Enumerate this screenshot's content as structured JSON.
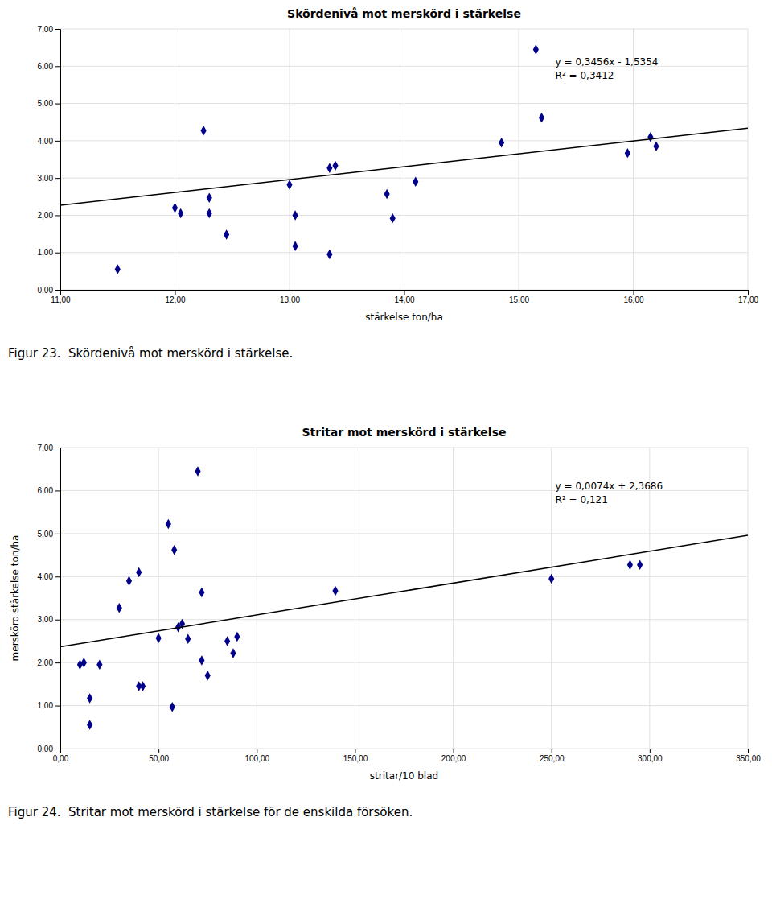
{
  "chart_data": [
    {
      "type": "scatter",
      "title": "Skördenivå mot merskörd i stärkelse",
      "xlabel": "stärkelse ton/ha",
      "xlim": [
        11.0,
        17.0
      ],
      "ylim": [
        0.0,
        7.0
      ],
      "xticks": [
        {
          "value": 11.0,
          "label": "11,00"
        },
        {
          "value": 12.0,
          "label": "12,00"
        },
        {
          "value": 13.0,
          "label": "13,00"
        },
        {
          "value": 14.0,
          "label": "14,00"
        },
        {
          "value": 15.0,
          "label": "15,00"
        },
        {
          "value": 16.0,
          "label": "16,00"
        },
        {
          "value": 17.0,
          "label": "17,00"
        }
      ],
      "yticks": [
        {
          "value": 0.0,
          "label": "0,00"
        },
        {
          "value": 1.0,
          "label": "1,00"
        },
        {
          "value": 2.0,
          "label": "2,00"
        },
        {
          "value": 3.0,
          "label": "3,00"
        },
        {
          "value": 4.0,
          "label": "4,00"
        },
        {
          "value": 5.0,
          "label": "5,00"
        },
        {
          "value": 6.0,
          "label": "6,00"
        },
        {
          "value": 7.0,
          "label": "7,00"
        }
      ],
      "grid": true,
      "series": [
        {
          "type": "scatter",
          "color": "#00008B",
          "marker": "diamond",
          "x": [
            11.5,
            12.0,
            12.05,
            12.25,
            12.3,
            12.3,
            12.45,
            13.0,
            13.05,
            13.05,
            13.35,
            13.4,
            13.35,
            13.85,
            13.9,
            14.1,
            14.85,
            15.15,
            15.2,
            15.95,
            16.15,
            16.2
          ],
          "values": [
            0.55,
            2.2,
            2.05,
            4.27,
            2.47,
            2.05,
            1.48,
            2.82,
            2.0,
            1.17,
            3.27,
            3.33,
            0.95,
            2.57,
            1.92,
            2.9,
            3.95,
            6.45,
            4.62,
            3.67,
            4.1,
            3.85
          ]
        },
        {
          "type": "line",
          "color": "#000000",
          "line_style": "solid",
          "x": [
            11.0,
            17.0
          ],
          "values": [
            2.2662,
            4.3398
          ]
        }
      ],
      "annotations": [
        "y = 0,3456x - 1,5354",
        "R² = 0,3412"
      ],
      "caption": "Figur 23.  Skördenivå mot merskörd i stärkelse."
    },
    {
      "type": "scatter",
      "title": "Stritar mot merskörd i stärkelse",
      "xlabel": "stritar/10 blad",
      "ylabel": "merskörd stärkelse ton/ha",
      "xlim": [
        0.0,
        350.0
      ],
      "ylim": [
        0.0,
        7.0
      ],
      "xticks": [
        {
          "value": 0.0,
          "label": "0,00"
        },
        {
          "value": 50.0,
          "label": "50,00"
        },
        {
          "value": 100.0,
          "label": "100,00"
        },
        {
          "value": 150.0,
          "label": "150,00"
        },
        {
          "value": 200.0,
          "label": "200,00"
        },
        {
          "value": 250.0,
          "label": "250,00"
        },
        {
          "value": 300.0,
          "label": "300,00"
        },
        {
          "value": 350.0,
          "label": "350,00"
        }
      ],
      "yticks": [
        {
          "value": 0.0,
          "label": "0,00"
        },
        {
          "value": 1.0,
          "label": "1,00"
        },
        {
          "value": 2.0,
          "label": "2,00"
        },
        {
          "value": 3.0,
          "label": "3,00"
        },
        {
          "value": 4.0,
          "label": "4,00"
        },
        {
          "value": 5.0,
          "label": "5,00"
        },
        {
          "value": 6.0,
          "label": "6,00"
        },
        {
          "value": 7.0,
          "label": "7,00"
        }
      ],
      "grid": true,
      "series": [
        {
          "type": "scatter",
          "color": "#00008B",
          "marker": "diamond",
          "x": [
            10,
            12,
            15,
            15,
            20,
            30,
            35,
            40,
            40,
            42,
            50,
            55,
            57,
            58,
            60,
            62,
            65,
            70,
            72,
            72,
            75,
            85,
            88,
            90,
            140,
            250,
            290,
            295
          ],
          "values": [
            1.95,
            2.0,
            1.17,
            0.55,
            1.95,
            3.27,
            3.9,
            4.1,
            1.45,
            1.45,
            2.57,
            5.22,
            0.97,
            4.62,
            2.82,
            2.9,
            2.55,
            6.45,
            2.05,
            3.63,
            1.7,
            2.5,
            2.22,
            2.6,
            3.67,
            3.95,
            4.27,
            4.27
          ]
        },
        {
          "type": "line",
          "color": "#000000",
          "line_style": "solid",
          "x": [
            0.0,
            350.0
          ],
          "values": [
            2.3686,
            4.9586
          ]
        }
      ],
      "annotations": [
        "y = 0,0074x + 2,3686",
        "R² = 0,121"
      ],
      "caption": "Figur 24.  Stritar mot merskörd i stärkelse för de enskilda försöken."
    }
  ]
}
